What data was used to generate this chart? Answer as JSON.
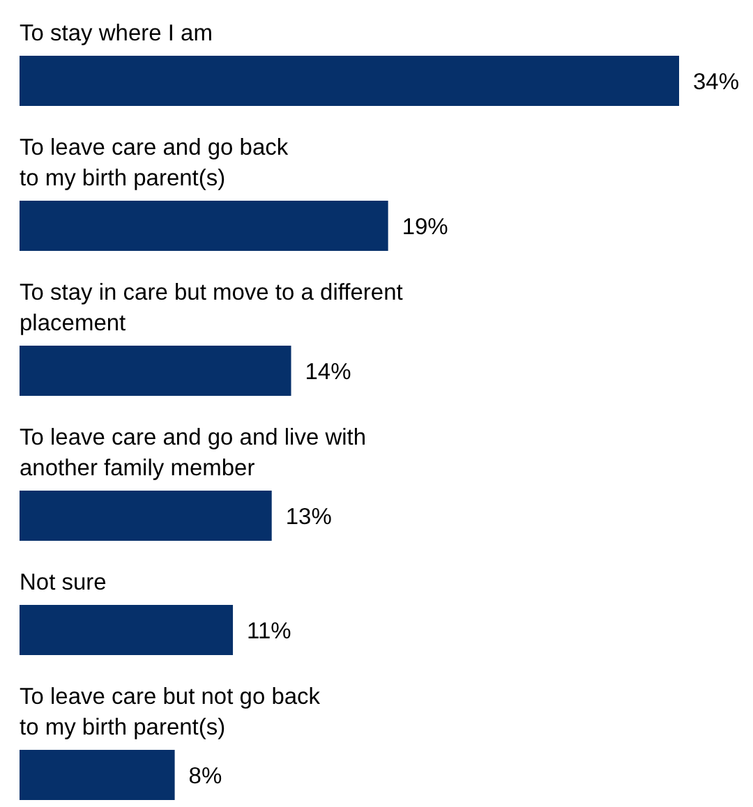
{
  "chart_data": {
    "type": "bar",
    "orientation": "horizontal",
    "categories": [
      "To stay where I am",
      "To leave care and go back\nto my birth parent(s)",
      "To stay in care but move to a different\nplacement",
      "To leave care and go and live with\nanother family member",
      "Not sure",
      "To leave care but not go back\nto my birth parent(s)"
    ],
    "values": [
      34,
      19,
      14,
      13,
      11,
      8
    ],
    "value_labels": [
      "34%",
      "19%",
      "14%",
      "13%",
      "11%",
      "8%"
    ],
    "color": "#06306a"
  }
}
